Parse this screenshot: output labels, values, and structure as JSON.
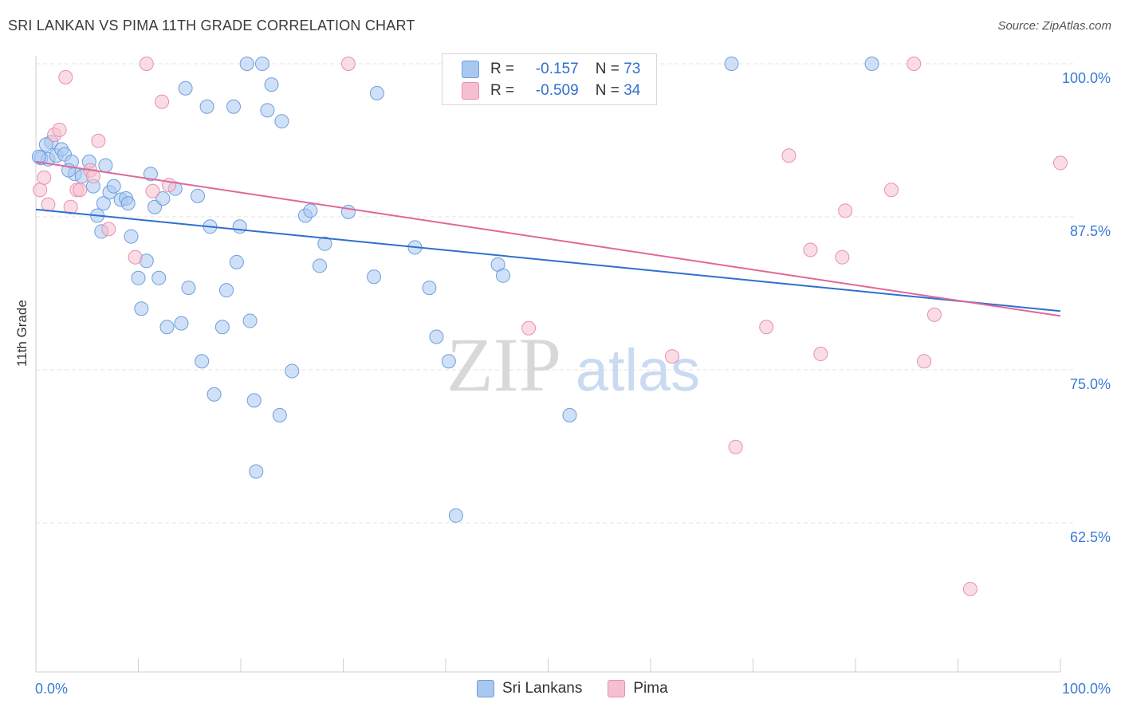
{
  "title": "SRI LANKAN VS PIMA 11TH GRADE CORRELATION CHART",
  "source": "Source: ZipAtlas.com",
  "watermark": {
    "zip": "ZIP",
    "atlas": "atlas"
  },
  "colors": {
    "sri_fill": "#a9c8f0",
    "sri_stroke": "#6d9ee0",
    "sri_line": "#2f6fd0",
    "pima_fill": "#f6bfd0",
    "pima_stroke": "#e98fae",
    "pima_line": "#e0679a",
    "axis_label": "#3a7bd5",
    "grid": "#e3e3e3"
  },
  "legend": {
    "rows": [
      {
        "r_label": "R =",
        "r_value": "-0.157",
        "n_label": "N =",
        "n_value": "73"
      },
      {
        "r_label": "R =",
        "r_value": "-0.509",
        "n_label": "N =",
        "n_value": "34"
      }
    ]
  },
  "bottom_legend": [
    "Sri Lankans",
    "Pima"
  ],
  "chart_data": {
    "type": "scatter",
    "title": "SRI LANKAN VS PIMA 11TH GRADE CORRELATION CHART",
    "ylabel": "11th Grade",
    "xlabel": "",
    "xlim": [
      0,
      100
    ],
    "ylim": [
      52,
      102
    ],
    "x_tick_labels": [
      "0.0%",
      "100.0%"
    ],
    "y_ticks": [
      62.5,
      75.0,
      87.5,
      100.0
    ],
    "y_tick_labels": [
      "62.5%",
      "75.0%",
      "87.5%",
      "100.0%"
    ],
    "grid": true,
    "series": [
      {
        "name": "Sri Lankans",
        "trend": [
          [
            0,
            88.1
          ],
          [
            100,
            79.8
          ]
        ],
        "points": [
          [
            0.5,
            92.3
          ],
          [
            1.2,
            92.2
          ],
          [
            1.5,
            93.6
          ],
          [
            2.0,
            92.5
          ],
          [
            2.5,
            93.0
          ],
          [
            2.8,
            92.6
          ],
          [
            3.5,
            92.0
          ],
          [
            3.8,
            91.0
          ],
          [
            4.5,
            90.8
          ],
          [
            5.2,
            92.0
          ],
          [
            5.6,
            90.0
          ],
          [
            6.0,
            87.6
          ],
          [
            6.4,
            86.3
          ],
          [
            6.6,
            88.6
          ],
          [
            7.2,
            89.5
          ],
          [
            7.6,
            90.0
          ],
          [
            8.3,
            88.9
          ],
          [
            8.8,
            89.0
          ],
          [
            9.3,
            85.9
          ],
          [
            10.0,
            82.5
          ],
          [
            10.3,
            80.0
          ],
          [
            10.8,
            83.9
          ],
          [
            11.6,
            88.3
          ],
          [
            12.0,
            82.5
          ],
          [
            12.4,
            89.0
          ],
          [
            12.8,
            78.5
          ],
          [
            13.6,
            89.8
          ],
          [
            14.2,
            78.8
          ],
          [
            14.6,
            98.0
          ],
          [
            14.9,
            81.7
          ],
          [
            15.8,
            89.2
          ],
          [
            16.2,
            75.7
          ],
          [
            16.7,
            96.5
          ],
          [
            17.0,
            86.7
          ],
          [
            17.4,
            73.0
          ],
          [
            18.2,
            78.5
          ],
          [
            18.6,
            81.5
          ],
          [
            19.3,
            96.5
          ],
          [
            19.6,
            83.8
          ],
          [
            19.9,
            86.7
          ],
          [
            20.6,
            100.0
          ],
          [
            20.9,
            79.0
          ],
          [
            21.3,
            72.5
          ],
          [
            21.5,
            66.7
          ],
          [
            22.1,
            100.0
          ],
          [
            22.6,
            96.2
          ],
          [
            23.0,
            98.3
          ],
          [
            23.8,
            71.3
          ],
          [
            24.0,
            95.3
          ],
          [
            25.0,
            74.9
          ],
          [
            26.3,
            87.6
          ],
          [
            26.8,
            88.0
          ],
          [
            27.7,
            83.5
          ],
          [
            28.2,
            85.3
          ],
          [
            30.5,
            87.9
          ],
          [
            33.0,
            82.6
          ],
          [
            33.3,
            97.6
          ],
          [
            37.0,
            85.0
          ],
          [
            38.4,
            81.7
          ],
          [
            39.1,
            77.7
          ],
          [
            40.3,
            75.7
          ],
          [
            41.0,
            63.1
          ],
          [
            45.1,
            83.6
          ],
          [
            45.6,
            82.7
          ],
          [
            52.1,
            71.3
          ],
          [
            67.9,
            100.0
          ],
          [
            81.6,
            100.0
          ],
          [
            0.3,
            92.4
          ],
          [
            1.0,
            93.4
          ],
          [
            3.2,
            91.3
          ],
          [
            9.0,
            88.6
          ],
          [
            6.8,
            91.7
          ],
          [
            11.2,
            91.0
          ]
        ]
      },
      {
        "name": "Pima",
        "trend": [
          [
            0,
            92.0
          ],
          [
            100,
            79.4
          ]
        ],
        "points": [
          [
            0.4,
            89.7
          ],
          [
            0.8,
            90.7
          ],
          [
            1.2,
            88.5
          ],
          [
            1.8,
            94.2
          ],
          [
            2.3,
            94.6
          ],
          [
            2.9,
            98.9
          ],
          [
            3.4,
            88.3
          ],
          [
            4.0,
            89.7
          ],
          [
            4.3,
            89.7
          ],
          [
            5.3,
            91.3
          ],
          [
            5.6,
            90.8
          ],
          [
            6.1,
            93.7
          ],
          [
            7.1,
            86.5
          ],
          [
            9.7,
            84.2
          ],
          [
            10.8,
            100.0
          ],
          [
            11.4,
            89.6
          ],
          [
            12.3,
            96.9
          ],
          [
            13.0,
            90.1
          ],
          [
            30.5,
            100.0
          ],
          [
            48.1,
            78.4
          ],
          [
            62.1,
            76.1
          ],
          [
            68.3,
            68.7
          ],
          [
            71.3,
            78.5
          ],
          [
            73.5,
            92.5
          ],
          [
            75.6,
            84.8
          ],
          [
            76.6,
            76.3
          ],
          [
            78.7,
            84.2
          ],
          [
            79.0,
            88.0
          ],
          [
            83.5,
            89.7
          ],
          [
            85.7,
            100.0
          ],
          [
            86.7,
            75.7
          ],
          [
            87.7,
            79.5
          ],
          [
            91.2,
            57.1
          ],
          [
            100.0,
            91.9
          ]
        ]
      }
    ]
  }
}
